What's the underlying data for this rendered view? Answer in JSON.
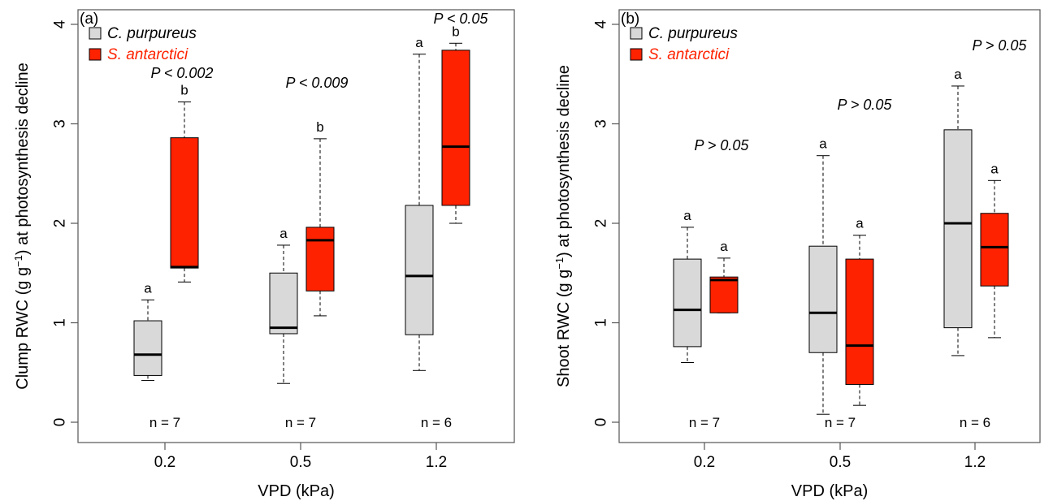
{
  "chart_data": [
    {
      "type": "box",
      "panel_label": "(a)",
      "xlabel": "VPD (kPa)",
      "ylabel_pre": "Clump RWC (g g",
      "ylabel_sup": "−1",
      "ylabel_post": ") at photosynthesis decline",
      "ylim": [
        0,
        4
      ],
      "yticks": [
        "0",
        "1",
        "2",
        "3",
        "4"
      ],
      "categories": [
        "0.2",
        "0.5",
        "1.2"
      ],
      "legend": [
        {
          "label": "C. purpureus",
          "color": "#d9d9d9",
          "text_color": "#000000"
        },
        {
          "label": "S. antarctici",
          "color": "#ff2200",
          "text_color": "#ff2200"
        }
      ],
      "p_values": [
        "P < 0.002",
        "P < 0.009",
        "P < 0.05"
      ],
      "n_labels": [
        "n = 7",
        "n = 7",
        "n = 6"
      ],
      "series": [
        {
          "name": "C. purpureus",
          "boxes": [
            {
              "min": 0.42,
              "q1": 0.47,
              "median": 0.68,
              "q3": 1.02,
              "max": 1.23,
              "letter": "a"
            },
            {
              "min": 0.39,
              "q1": 0.89,
              "median": 0.95,
              "q3": 1.5,
              "max": 1.78,
              "letter": "a"
            },
            {
              "min": 0.52,
              "q1": 0.88,
              "median": 1.47,
              "q3": 2.18,
              "max": 3.7,
              "letter": "a"
            }
          ]
        },
        {
          "name": "S. antarctici",
          "boxes": [
            {
              "min": 1.41,
              "q1": 1.55,
              "median": 1.56,
              "q3": 2.86,
              "max": 3.22,
              "letter": "b"
            },
            {
              "min": 1.07,
              "q1": 1.32,
              "median": 1.83,
              "q3": 1.96,
              "max": 2.85,
              "letter": "b"
            },
            {
              "min": 2.0,
              "q1": 2.18,
              "median": 2.77,
              "q3": 3.74,
              "max": 3.81,
              "letter": "b"
            }
          ]
        }
      ]
    },
    {
      "type": "box",
      "panel_label": "(b)",
      "xlabel": "VPD (kPa)",
      "ylabel_pre": "Shoot RWC (g g",
      "ylabel_sup": "−1",
      "ylabel_post": ") at photosynthesis decline",
      "ylim": [
        0,
        4
      ],
      "yticks": [
        "0",
        "1",
        "2",
        "3",
        "4"
      ],
      "categories": [
        "0.2",
        "0.5",
        "1.2"
      ],
      "legend": [
        {
          "label": "C. purpureus",
          "color": "#d9d9d9",
          "text_color": "#000000"
        },
        {
          "label": "S. antarctici",
          "color": "#ff2200",
          "text_color": "#ff2200"
        }
      ],
      "p_values": [
        "P > 0.05",
        "P > 0.05",
        "P > 0.05"
      ],
      "n_labels": [
        "n = 7",
        "n = 7",
        "n = 6"
      ],
      "series": [
        {
          "name": "C. purpureus",
          "boxes": [
            {
              "min": 0.6,
              "q1": 0.76,
              "median": 1.13,
              "q3": 1.64,
              "max": 1.96,
              "letter": "a"
            },
            {
              "min": 0.08,
              "q1": 0.7,
              "median": 1.1,
              "q3": 1.77,
              "max": 2.68,
              "letter": "a"
            },
            {
              "min": 0.67,
              "q1": 0.95,
              "median": 2.0,
              "q3": 2.94,
              "max": 3.38,
              "letter": "a"
            }
          ]
        },
        {
          "name": "S. antarctici",
          "boxes": [
            {
              "min": 1.1,
              "q1": 1.1,
              "median": 1.43,
              "q3": 1.46,
              "max": 1.65,
              "letter": "a"
            },
            {
              "min": 0.17,
              "q1": 0.38,
              "median": 0.77,
              "q3": 1.64,
              "max": 1.88,
              "letter": "a"
            },
            {
              "min": 0.85,
              "q1": 1.37,
              "median": 1.76,
              "q3": 2.1,
              "max": 2.43,
              "letter": "a"
            }
          ]
        }
      ]
    }
  ]
}
